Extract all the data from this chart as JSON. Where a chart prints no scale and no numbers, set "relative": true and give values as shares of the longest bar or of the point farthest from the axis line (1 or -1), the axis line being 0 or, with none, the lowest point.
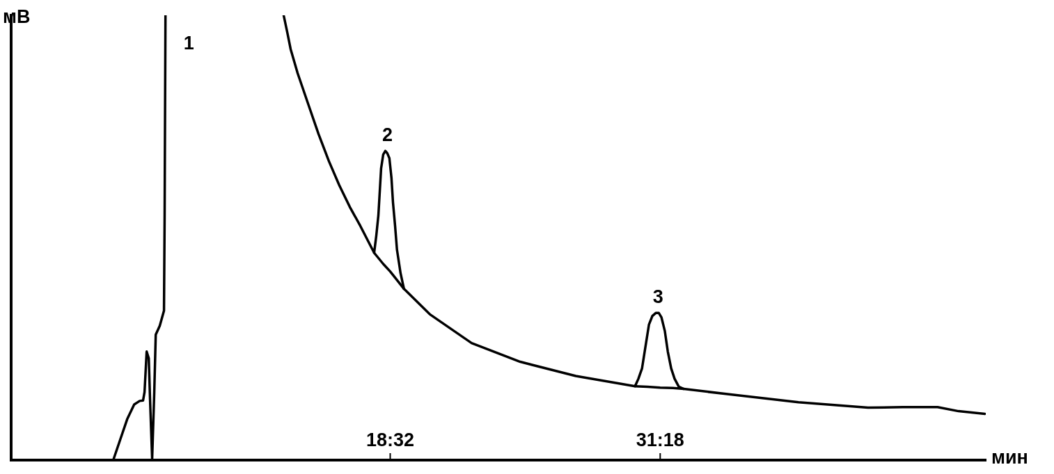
{
  "chart_data": {
    "type": "line",
    "relative": true,
    "xlabel": "мин",
    "ylabel": "мВ",
    "xlim": [
      0.6,
      46.7
    ],
    "xticks": [
      {
        "value": 18.53,
        "label": "18:32"
      },
      {
        "value": 31.3,
        "label": "31:18"
      }
    ],
    "grid": false,
    "legend": false,
    "marker": "none",
    "line_style": "solid",
    "annotations": [
      {
        "text": "1",
        "x": 7.9,
        "y": 1
      },
      {
        "text": "2",
        "x": 18.3,
        "y": 0.695
      },
      {
        "text": "3",
        "x": 31.1,
        "y": 0.331
      }
    ],
    "series": [
      {
        "color": "#000000",
        "x": [
          5.43,
          5.76,
          6.09,
          6.42,
          6.68,
          6.84,
          6.91,
          7.01,
          7.11,
          7.17,
          7.27,
          7.37,
          7.44,
          7.63,
          7.83,
          7.86,
          7.9,
          10.7,
          13.49,
          13.66,
          13.82,
          14.15,
          14.64,
          15.14,
          15.63,
          16.12,
          16.62,
          17.11,
          17.77,
          17.87,
          17.97,
          18.1,
          18.2,
          18.3,
          18.39,
          18.49,
          18.59,
          18.66,
          18.76,
          18.85,
          19.02,
          19.18,
          20.4,
          22.38,
          24.68,
          27.31,
          30.11,
          30.27,
          30.44,
          30.77,
          30.93,
          31.1,
          31.23,
          31.36,
          31.52,
          31.66,
          31.82,
          31.98,
          32.18,
          32.41,
          34.55,
          37.84,
          41.13,
          42.78,
          44.42,
          45.41,
          46.66
        ],
        "values": [
          0,
          0.046,
          0.092,
          0.125,
          0.133,
          0.134,
          0.153,
          0.244,
          0.229,
          0.137,
          0.003,
          0.153,
          0.282,
          0.302,
          0.336,
          0.55,
          1,
          null,
          1,
          0.962,
          0.924,
          0.87,
          0.802,
          0.733,
          0.672,
          0.618,
          0.569,
          0.527,
          0.466,
          0.504,
          0.55,
          0.656,
          0.687,
          0.695,
          0.69,
          0.679,
          0.634,
          0.58,
          0.527,
          0.473,
          0.42,
          0.385,
          0.328,
          0.263,
          0.221,
          0.189,
          0.166,
          0.183,
          0.206,
          0.305,
          0.324,
          0.331,
          0.331,
          0.321,
          0.29,
          0.244,
          0.206,
          0.183,
          0.165,
          0.16,
          0.148,
          0.13,
          0.118,
          0.119,
          0.119,
          0.11,
          0.104
        ]
      },
      {
        "color": "#000000",
        "x": [
          17.77,
          18.2,
          18.53,
          18.85,
          19.18,
          24.0,
          30.11,
          30.7,
          31.3,
          31.9,
          32.41
        ],
        "values": [
          0.466,
          0.441,
          0.424,
          0.405,
          0.385,
          null,
          0.166,
          0.165,
          0.163,
          0.162,
          0.16
        ]
      }
    ]
  }
}
